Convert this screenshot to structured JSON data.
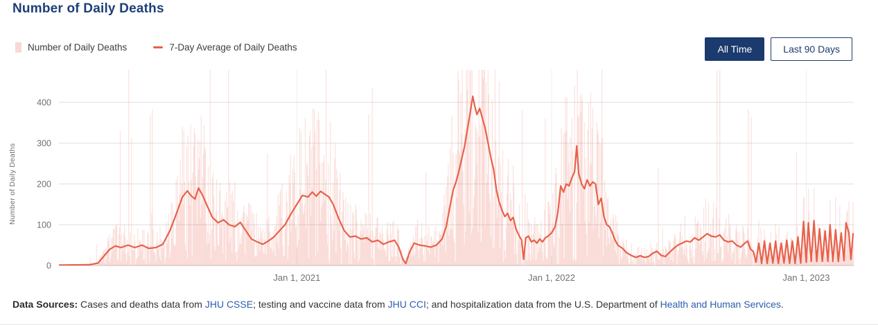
{
  "page": {
    "title": "Number of Daily Deaths"
  },
  "legend": {
    "bars_label": "Number of Daily Deaths",
    "line_label": "7-Day Average of Daily Deaths"
  },
  "controls": {
    "all_time": "All Time",
    "last_90": "Last 90 Days"
  },
  "footer": {
    "label": "Data Sources:",
    "s1": " Cases and deaths data from ",
    "l1": "JHU CSSE",
    "s2": "; testing and vaccine data from ",
    "l2": "JHU CCI",
    "s3": "; and hospitalization data from the U.S. Department of ",
    "l3": "Health and Human Services",
    "s4": "."
  },
  "colors": {
    "accent_navy": "#1b3a6d",
    "title_navy": "#1c3f77",
    "line_red": "#e8604a",
    "bar_pink": "#f6d9d5",
    "link_blue": "#2b5dad",
    "axis_gray": "#6f6f6f"
  },
  "chart_data": {
    "type": "bar",
    "title": "Number of Daily Deaths",
    "xlabel": "",
    "ylabel": "Number of Daily Deaths",
    "ylim": [
      0,
      480
    ],
    "yticks": [
      0,
      100,
      200,
      300,
      400
    ],
    "grid": "horizontal",
    "legend_position": "top-left",
    "x_domain": [
      "2020-01-26",
      "2023-03-10"
    ],
    "xticks": [
      {
        "date": "2021-01-01",
        "label": "Jan 1, 2021"
      },
      {
        "date": "2022-01-01",
        "label": "Jan 1, 2022"
      },
      {
        "date": "2023-01-01",
        "label": "Jan 1, 2023"
      }
    ],
    "series": [
      {
        "name": "Number of Daily Deaths",
        "type": "bar",
        "note": "daily values scatter around the 7-day average; tallest daily spikes exceed the visible axis and are clipped at the plot top"
      },
      {
        "name": "7-Day Average of Daily Deaths",
        "type": "line",
        "points": [
          [
            "2020-01-26",
            1
          ],
          [
            "2020-03-10",
            2
          ],
          [
            "2020-03-22",
            6
          ],
          [
            "2020-03-30",
            22
          ],
          [
            "2020-04-08",
            40
          ],
          [
            "2020-04-16",
            48
          ],
          [
            "2020-04-24",
            44
          ],
          [
            "2020-05-04",
            50
          ],
          [
            "2020-05-14",
            44
          ],
          [
            "2020-05-24",
            50
          ],
          [
            "2020-06-03",
            42
          ],
          [
            "2020-06-13",
            44
          ],
          [
            "2020-06-23",
            52
          ],
          [
            "2020-07-03",
            85
          ],
          [
            "2020-07-13",
            130
          ],
          [
            "2020-07-21",
            168
          ],
          [
            "2020-07-28",
            183
          ],
          [
            "2020-08-03",
            170
          ],
          [
            "2020-08-08",
            163
          ],
          [
            "2020-08-13",
            190
          ],
          [
            "2020-08-19",
            172
          ],
          [
            "2020-08-25",
            148
          ],
          [
            "2020-09-02",
            118
          ],
          [
            "2020-09-10",
            105
          ],
          [
            "2020-09-18",
            112
          ],
          [
            "2020-09-26",
            100
          ],
          [
            "2020-10-04",
            95
          ],
          [
            "2020-10-12",
            106
          ],
          [
            "2020-10-20",
            85
          ],
          [
            "2020-10-28",
            65
          ],
          [
            "2020-11-05",
            58
          ],
          [
            "2020-11-13",
            52
          ],
          [
            "2020-11-21",
            60
          ],
          [
            "2020-11-29",
            70
          ],
          [
            "2020-12-07",
            85
          ],
          [
            "2020-12-15",
            100
          ],
          [
            "2020-12-23",
            125
          ],
          [
            "2021-01-01",
            150
          ],
          [
            "2021-01-09",
            172
          ],
          [
            "2021-01-17",
            168
          ],
          [
            "2021-01-23",
            180
          ],
          [
            "2021-01-29",
            170
          ],
          [
            "2021-02-04",
            182
          ],
          [
            "2021-02-10",
            175
          ],
          [
            "2021-02-16",
            168
          ],
          [
            "2021-02-22",
            150
          ],
          [
            "2021-03-02",
            115
          ],
          [
            "2021-03-10",
            85
          ],
          [
            "2021-03-18",
            70
          ],
          [
            "2021-03-26",
            72
          ],
          [
            "2021-04-03",
            65
          ],
          [
            "2021-04-11",
            68
          ],
          [
            "2021-04-19",
            58
          ],
          [
            "2021-04-27",
            62
          ],
          [
            "2021-05-05",
            52
          ],
          [
            "2021-05-13",
            58
          ],
          [
            "2021-05-21",
            62
          ],
          [
            "2021-05-27",
            45
          ],
          [
            "2021-06-02",
            15
          ],
          [
            "2021-06-06",
            5
          ],
          [
            "2021-06-12",
            35
          ],
          [
            "2021-06-18",
            55
          ],
          [
            "2021-06-26",
            50
          ],
          [
            "2021-07-04",
            48
          ],
          [
            "2021-07-12",
            45
          ],
          [
            "2021-07-20",
            50
          ],
          [
            "2021-07-28",
            65
          ],
          [
            "2021-08-03",
            95
          ],
          [
            "2021-08-09",
            150
          ],
          [
            "2021-08-13",
            185
          ],
          [
            "2021-08-17",
            205
          ],
          [
            "2021-08-21",
            230
          ],
          [
            "2021-08-25",
            260
          ],
          [
            "2021-08-29",
            290
          ],
          [
            "2021-09-02",
            330
          ],
          [
            "2021-09-06",
            370
          ],
          [
            "2021-09-10",
            415
          ],
          [
            "2021-09-13",
            390
          ],
          [
            "2021-09-16",
            370
          ],
          [
            "2021-09-20",
            385
          ],
          [
            "2021-09-24",
            360
          ],
          [
            "2021-09-28",
            335
          ],
          [
            "2021-10-02",
            300
          ],
          [
            "2021-10-06",
            265
          ],
          [
            "2021-10-10",
            235
          ],
          [
            "2021-10-14",
            185
          ],
          [
            "2021-10-18",
            155
          ],
          [
            "2021-10-22",
            135
          ],
          [
            "2021-10-26",
            120
          ],
          [
            "2021-10-30",
            128
          ],
          [
            "2021-11-03",
            110
          ],
          [
            "2021-11-07",
            118
          ],
          [
            "2021-11-11",
            90
          ],
          [
            "2021-11-15",
            75
          ],
          [
            "2021-11-19",
            62
          ],
          [
            "2021-11-22",
            15
          ],
          [
            "2021-11-25",
            68
          ],
          [
            "2021-11-29",
            72
          ],
          [
            "2021-12-03",
            58
          ],
          [
            "2021-12-07",
            62
          ],
          [
            "2021-12-11",
            55
          ],
          [
            "2021-12-15",
            65
          ],
          [
            "2021-12-19",
            58
          ],
          [
            "2021-12-23",
            68
          ],
          [
            "2021-12-27",
            72
          ],
          [
            "2022-01-01",
            80
          ],
          [
            "2022-01-06",
            95
          ],
          [
            "2022-01-10",
            130
          ],
          [
            "2022-01-14",
            195
          ],
          [
            "2022-01-18",
            180
          ],
          [
            "2022-01-22",
            200
          ],
          [
            "2022-01-26",
            195
          ],
          [
            "2022-01-30",
            215
          ],
          [
            "2022-02-03",
            230
          ],
          [
            "2022-02-06",
            293
          ],
          [
            "2022-02-09",
            225
          ],
          [
            "2022-02-13",
            200
          ],
          [
            "2022-02-17",
            188
          ],
          [
            "2022-02-21",
            210
          ],
          [
            "2022-02-25",
            195
          ],
          [
            "2022-03-01",
            205
          ],
          [
            "2022-03-05",
            200
          ],
          [
            "2022-03-09",
            150
          ],
          [
            "2022-03-13",
            165
          ],
          [
            "2022-03-17",
            120
          ],
          [
            "2022-03-21",
            100
          ],
          [
            "2022-03-25",
            95
          ],
          [
            "2022-03-29",
            80
          ],
          [
            "2022-04-02",
            62
          ],
          [
            "2022-04-06",
            50
          ],
          [
            "2022-04-10",
            45
          ],
          [
            "2022-04-14",
            40
          ],
          [
            "2022-04-18",
            32
          ],
          [
            "2022-04-22",
            28
          ],
          [
            "2022-04-26",
            24
          ],
          [
            "2022-05-02",
            20
          ],
          [
            "2022-05-08",
            24
          ],
          [
            "2022-05-14",
            20
          ],
          [
            "2022-05-20",
            22
          ],
          [
            "2022-05-26",
            30
          ],
          [
            "2022-06-01",
            35
          ],
          [
            "2022-06-07",
            25
          ],
          [
            "2022-06-13",
            22
          ],
          [
            "2022-06-19",
            32
          ],
          [
            "2022-06-25",
            42
          ],
          [
            "2022-07-01",
            50
          ],
          [
            "2022-07-07",
            55
          ],
          [
            "2022-07-13",
            60
          ],
          [
            "2022-07-19",
            58
          ],
          [
            "2022-07-25",
            68
          ],
          [
            "2022-07-31",
            62
          ],
          [
            "2022-08-06",
            70
          ],
          [
            "2022-08-12",
            78
          ],
          [
            "2022-08-18",
            72
          ],
          [
            "2022-08-24",
            70
          ],
          [
            "2022-08-30",
            75
          ],
          [
            "2022-09-05",
            62
          ],
          [
            "2022-09-11",
            58
          ],
          [
            "2022-09-17",
            60
          ],
          [
            "2022-09-23",
            50
          ],
          [
            "2022-09-29",
            45
          ],
          [
            "2022-10-05",
            55
          ],
          [
            "2022-10-09",
            60
          ],
          [
            "2022-10-13",
            40
          ],
          [
            "2022-10-17",
            35
          ],
          [
            "2022-10-21",
            8
          ],
          [
            "2022-10-25",
            55
          ],
          [
            "2022-10-29",
            5
          ],
          [
            "2022-11-02",
            60
          ],
          [
            "2022-11-06",
            5
          ],
          [
            "2022-11-10",
            55
          ],
          [
            "2022-11-14",
            6
          ],
          [
            "2022-11-18",
            60
          ],
          [
            "2022-11-22",
            5
          ],
          [
            "2022-11-26",
            55
          ],
          [
            "2022-11-30",
            6
          ],
          [
            "2022-12-04",
            62
          ],
          [
            "2022-12-08",
            5
          ],
          [
            "2022-12-12",
            60
          ],
          [
            "2022-12-16",
            5
          ],
          [
            "2022-12-20",
            70
          ],
          [
            "2022-12-24",
            6
          ],
          [
            "2022-12-28",
            108
          ],
          [
            "2023-01-01",
            8
          ],
          [
            "2023-01-04",
            105
          ],
          [
            "2023-01-08",
            10
          ],
          [
            "2023-01-12",
            110
          ],
          [
            "2023-01-16",
            10
          ],
          [
            "2023-01-20",
            90
          ],
          [
            "2023-01-24",
            10
          ],
          [
            "2023-01-28",
            85
          ],
          [
            "2023-02-01",
            10
          ],
          [
            "2023-02-04",
            100
          ],
          [
            "2023-02-08",
            10
          ],
          [
            "2023-02-12",
            88
          ],
          [
            "2023-02-16",
            10
          ],
          [
            "2023-02-20",
            80
          ],
          [
            "2023-02-24",
            12
          ],
          [
            "2023-02-27",
            105
          ],
          [
            "2023-03-03",
            80
          ],
          [
            "2023-03-06",
            15
          ],
          [
            "2023-03-09",
            78
          ]
        ]
      }
    ]
  }
}
